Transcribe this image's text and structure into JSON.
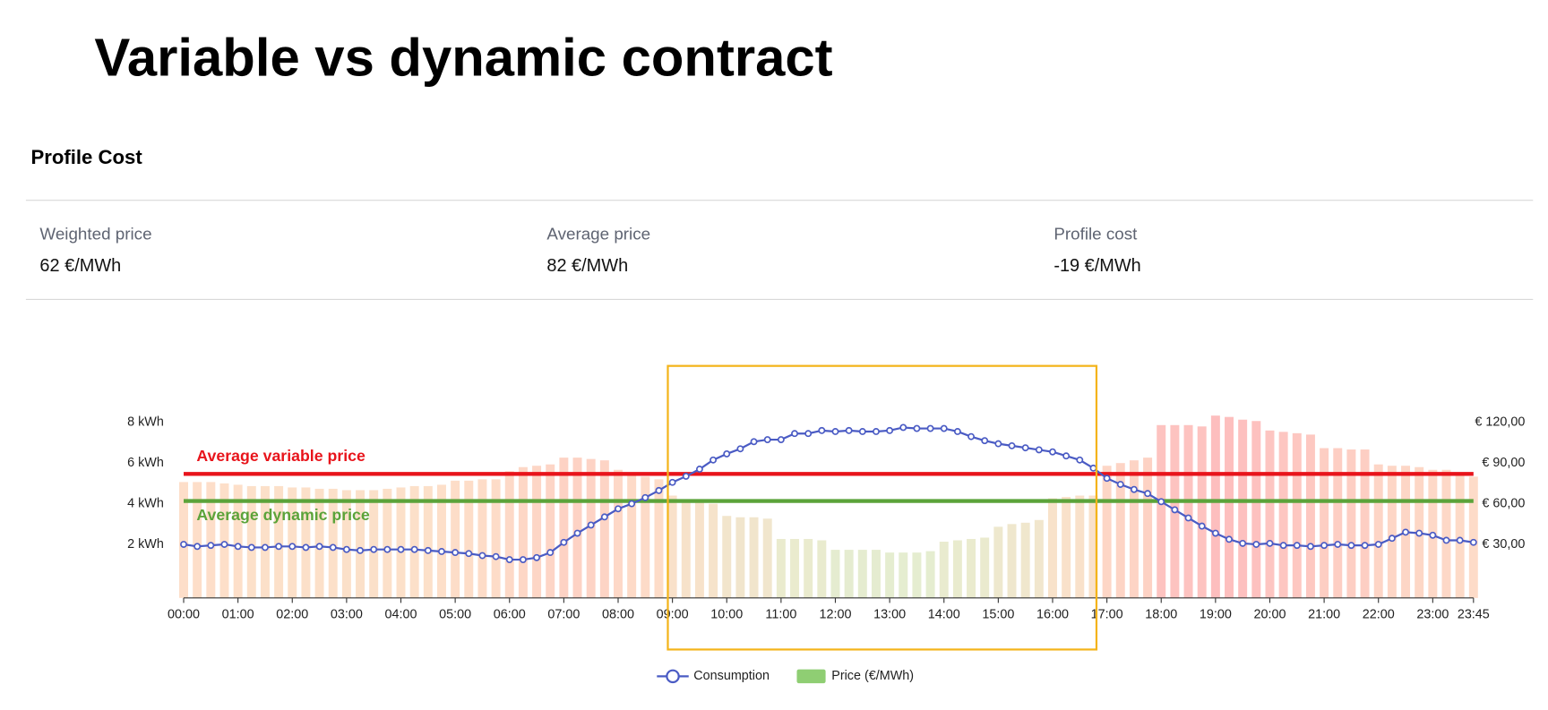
{
  "title": "Variable vs dynamic contract",
  "section_title": "Profile Cost",
  "stats": [
    {
      "label": "Weighted price",
      "value": "62 €/MWh"
    },
    {
      "label": "Average price",
      "value": "82 €/MWh"
    },
    {
      "label": "Profile cost",
      "value": "-19 €/MWh"
    }
  ],
  "chart_data": {
    "type": "combo",
    "categories": [
      "00:00",
      null,
      null,
      null,
      "01:00",
      null,
      null,
      null,
      "02:00",
      null,
      null,
      null,
      "03:00",
      null,
      null,
      null,
      "04:00",
      null,
      null,
      null,
      "05:00",
      null,
      null,
      null,
      "06:00",
      null,
      null,
      null,
      "07:00",
      null,
      null,
      null,
      "08:00",
      null,
      null,
      null,
      "09:00",
      null,
      null,
      null,
      "10:00",
      null,
      null,
      null,
      "11:00",
      null,
      null,
      null,
      "12:00",
      null,
      null,
      null,
      "13:00",
      null,
      null,
      null,
      "14:00",
      null,
      null,
      null,
      "15:00",
      null,
      null,
      null,
      "16:00",
      null,
      null,
      null,
      "17:00",
      null,
      null,
      null,
      "18:00",
      null,
      null,
      null,
      "19:00",
      null,
      null,
      null,
      "20:00",
      null,
      null,
      null,
      "21:00",
      null,
      null,
      null,
      "22:00",
      null,
      null,
      null,
      "23:00",
      null,
      null,
      "23:45"
    ],
    "series": [
      {
        "name": "Consumption",
        "type": "line",
        "color": "#4a5bc4",
        "values": [
          2.0,
          1.9,
          1.95,
          2.0,
          1.9,
          1.85,
          1.85,
          1.9,
          1.9,
          1.85,
          1.9,
          1.85,
          1.75,
          1.7,
          1.75,
          1.75,
          1.75,
          1.75,
          1.7,
          1.65,
          1.6,
          1.55,
          1.45,
          1.4,
          1.25,
          1.25,
          1.35,
          1.6,
          2.1,
          2.55,
          2.95,
          3.35,
          3.75,
          4.0,
          4.3,
          4.65,
          5.05,
          5.35,
          5.7,
          6.15,
          6.45,
          6.7,
          7.05,
          7.15,
          7.15,
          7.45,
          7.45,
          7.6,
          7.55,
          7.6,
          7.55,
          7.55,
          7.6,
          7.75,
          7.7,
          7.7,
          7.7,
          7.55,
          7.3,
          7.1,
          6.95,
          6.85,
          6.75,
          6.65,
          6.55,
          6.35,
          6.15,
          5.75,
          5.25,
          4.95,
          4.7,
          4.5,
          4.1,
          3.7,
          3.3,
          2.9,
          2.55,
          2.25,
          2.05,
          2.0,
          2.05,
          1.95,
          1.95,
          1.9,
          1.95,
          2.0,
          1.95,
          1.95,
          2.0,
          2.3,
          2.6,
          2.55,
          2.45,
          2.2,
          2.2,
          2.1
        ]
      },
      {
        "name": "Price (€/MWh)",
        "type": "bar",
        "axis": "y2",
        "color": "#8fce73",
        "values": [
          76,
          76,
          76,
          75,
          74,
          73,
          73,
          73,
          72,
          72,
          71,
          71,
          70,
          70,
          70,
          71,
          72,
          73,
          73,
          74,
          77,
          77,
          78,
          78,
          84,
          87,
          88,
          89,
          94,
          94,
          93,
          92,
          85,
          83,
          80,
          78,
          66,
          63,
          62,
          60,
          51,
          50,
          50,
          49,
          34,
          34,
          34,
          33,
          26,
          26,
          26,
          26,
          24,
          24,
          24,
          25,
          32,
          33,
          34,
          35,
          43,
          45,
          46,
          48,
          64,
          65,
          66,
          66,
          88,
          90,
          92,
          94,
          118,
          118,
          118,
          117,
          125,
          124,
          122,
          121,
          114,
          113,
          112,
          111,
          101,
          101,
          100,
          100,
          89,
          88,
          88,
          87,
          85,
          85,
          82,
          80
        ]
      }
    ],
    "bar_colors": [
      "#e0eac8",
      "#fdd9bf",
      "#fdb3b3"
    ],
    "reference_lines": [
      {
        "label": "Average variable price",
        "value": 82,
        "axis": "y2",
        "color": "#e8141b"
      },
      {
        "label": "Average dynamic price",
        "value": 62,
        "axis": "y2",
        "color": "#5ba33a"
      }
    ],
    "ylim": [
      -0.634,
      8.68
    ],
    "yticks": [
      {
        "value": 2,
        "label": "2 kWh"
      },
      {
        "value": 4,
        "label": "4 kWh"
      },
      {
        "value": 6,
        "label": "6 kWh"
      },
      {
        "value": 8,
        "label": "8 kWh"
      }
    ],
    "y2lim": [
      -9.5,
      130.2
    ],
    "y2ticks": [
      {
        "value": 30,
        "label": "€ 30,00"
      },
      {
        "value": 60,
        "label": "€ 60,00"
      },
      {
        "value": 90,
        "label": "€ 90,00"
      },
      {
        "value": 120,
        "label": "€ 120,00"
      }
    ],
    "legend": "bottom"
  }
}
